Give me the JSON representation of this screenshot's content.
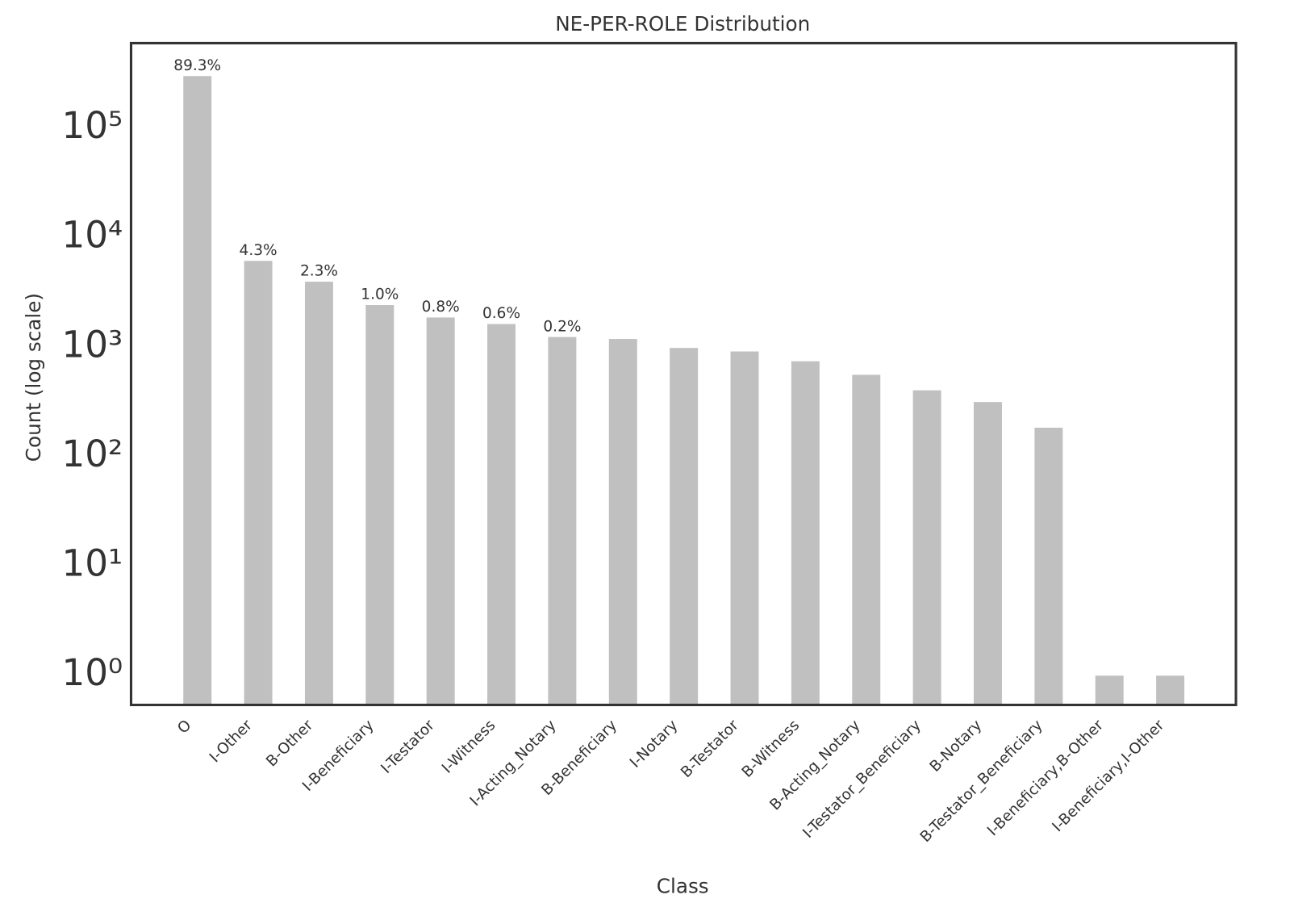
{
  "chart_data": {
    "type": "bar",
    "title": "NE-PER-ROLE Distribution",
    "x_label": "Class",
    "y_label": "Count (log scale)",
    "log_scale": true,
    "color": "#c0c0c0",
    "categories": [
      "O",
      "I-Other",
      "B-Other",
      "I-Beneficiary",
      "I-Testator",
      "I-Witness",
      "I-Acting_Notary",
      "B-Beneficiary",
      "I-Notary",
      "B-Testator",
      "B-Witness",
      "B-Acting_Notary",
      "I-Testator_Beneficiary",
      "B-Notary",
      "B-Testator_Beneficiary",
      "I-Beneficiary,B-Other",
      "I-Beneficiary,I-Other"
    ],
    "values": [
      300000,
      6150,
      3970,
      2430,
      1870,
      1630,
      1240,
      1190,
      985,
      915,
      745,
      560,
      404,
      316,
      184,
      1,
      1
    ],
    "percent_labels": [
      {
        "value": 89.3,
        "label": "89.3%"
      },
      {
        "value": 4.3,
        "label": "4.3%"
      },
      {
        "value": 2.3,
        "label": "2.3%"
      },
      {
        "value": 1.0,
        "label": "1.0%"
      },
      {
        "value": 0.8,
        "label": "0.8%"
      },
      {
        "value": 0.6,
        "label": "0.6%"
      },
      {
        "value": 0.2,
        "label": "0.2%"
      }
    ],
    "ylim": [
      0.54,
      600000
    ],
    "yticks": [
      {
        "value": 1,
        "label": "10⁰"
      },
      {
        "value": 10,
        "label": "10¹"
      },
      {
        "value": 100,
        "label": "10²"
      },
      {
        "value": 1000,
        "label": "10³"
      },
      {
        "value": 10000,
        "label": "10⁴"
      },
      {
        "value": 100000,
        "label": "10⁵"
      }
    ],
    "grid": false
  }
}
